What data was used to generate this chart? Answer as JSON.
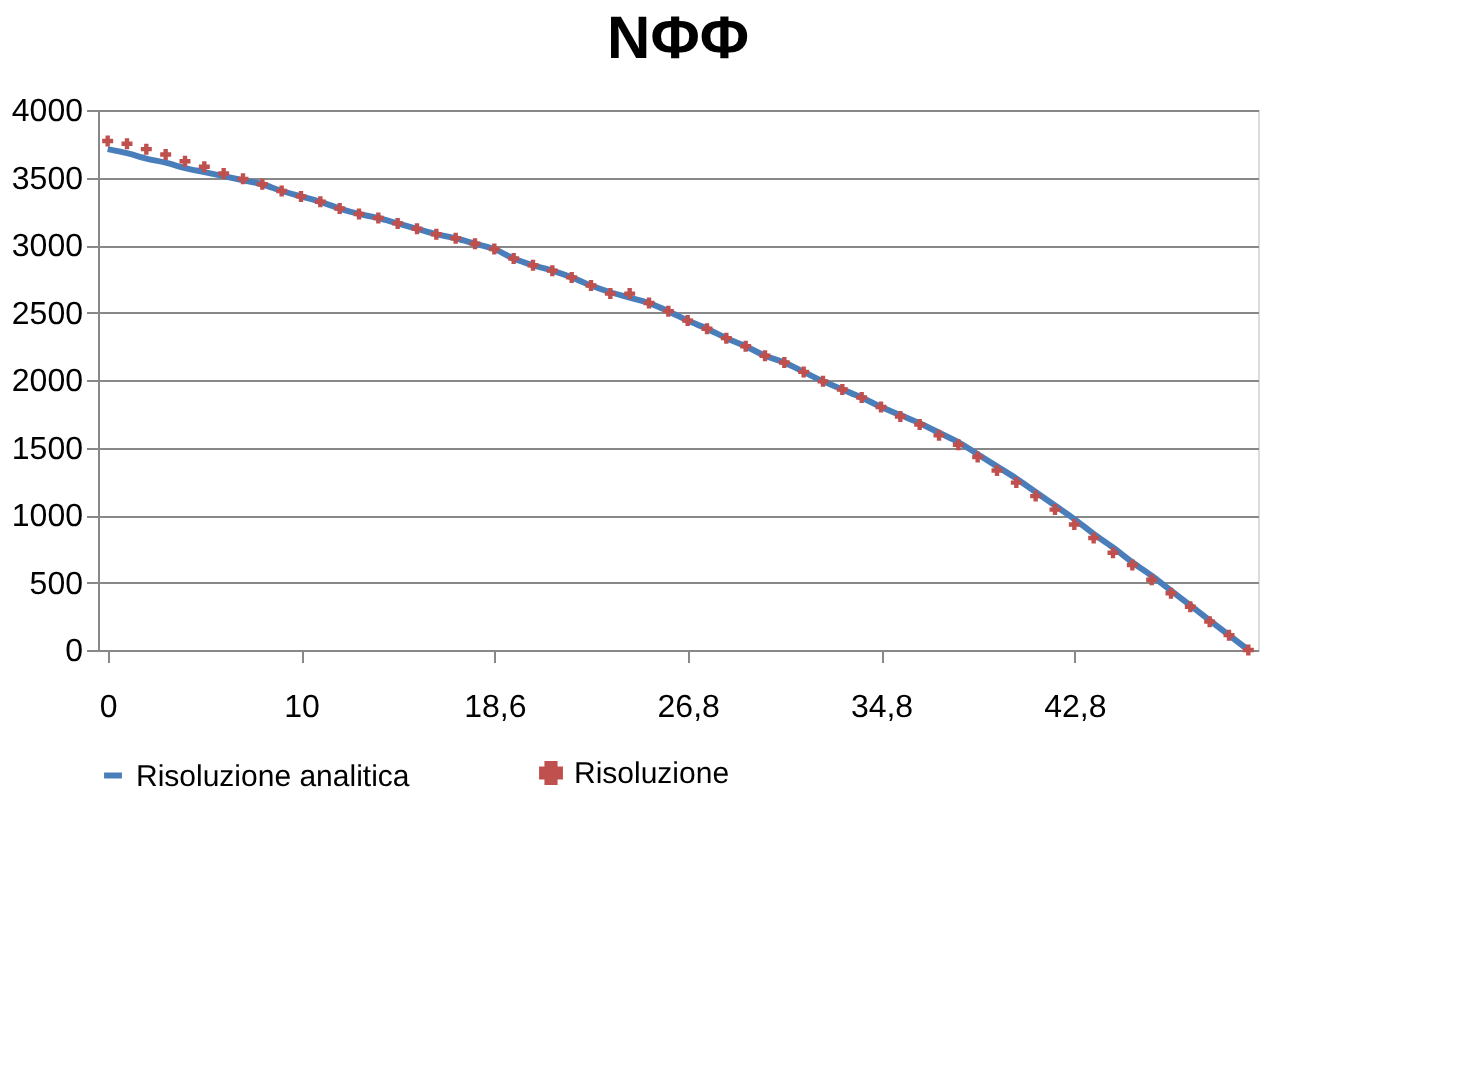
{
  "chart_data": {
    "type": "line",
    "title": "NΦΦ",
    "categories": [
      "0",
      null,
      null,
      null,
      null,
      null,
      null,
      null,
      null,
      null,
      "10",
      null,
      null,
      null,
      null,
      null,
      null,
      null,
      null,
      null,
      "18,6",
      null,
      null,
      null,
      null,
      null,
      null,
      null,
      null,
      null,
      "26,8",
      null,
      null,
      null,
      null,
      null,
      null,
      null,
      null,
      null,
      "34,8",
      null,
      null,
      null,
      null,
      null,
      null,
      null,
      null,
      null,
      "42,8",
      null,
      null,
      null,
      null,
      null,
      null,
      null,
      null,
      null
    ],
    "series": [
      {
        "name": "Risoluzione analitica",
        "color": "#4a7ebb",
        "values": [
          3710,
          3680,
          3640,
          3610,
          3570,
          3540,
          3510,
          3480,
          3450,
          3400,
          3360,
          3320,
          3270,
          3230,
          3200,
          3160,
          3120,
          3080,
          3050,
          3010,
          2970,
          2900,
          2850,
          2810,
          2760,
          2700,
          2650,
          2610,
          2570,
          2510,
          2440,
          2380,
          2310,
          2250,
          2180,
          2130,
          2060,
          1990,
          1930,
          1870,
          1800,
          1740,
          1680,
          1610,
          1540,
          1450,
          1360,
          1270,
          1170,
          1070,
          970,
          860,
          760,
          650,
          550,
          440,
          330,
          220,
          110,
          0
        ]
      },
      {
        "name": "Risoluzione",
        "type": "scatter",
        "color": "#c0504d",
        "marker": "cross",
        "values": [
          3770,
          3750,
          3710,
          3670,
          3620,
          3580,
          3530,
          3490,
          3450,
          3400,
          3360,
          3320,
          3270,
          3230,
          3200,
          3160,
          3120,
          3080,
          3050,
          3010,
          2970,
          2900,
          2850,
          2810,
          2760,
          2700,
          2640,
          2640,
          2570,
          2510,
          2440,
          2380,
          2310,
          2250,
          2180,
          2130,
          2060,
          1990,
          1930,
          1870,
          1800,
          1730,
          1670,
          1590,
          1520,
          1430,
          1330,
          1240,
          1140,
          1040,
          930,
          830,
          720,
          630,
          520,
          420,
          320,
          210,
          110,
          0
        ]
      }
    ],
    "ylim": [
      0,
      4000
    ],
    "yticks": [
      0,
      500,
      1000,
      1500,
      2000,
      2500,
      3000,
      3500,
      4000
    ],
    "grid": "y",
    "legend": "bottom"
  }
}
